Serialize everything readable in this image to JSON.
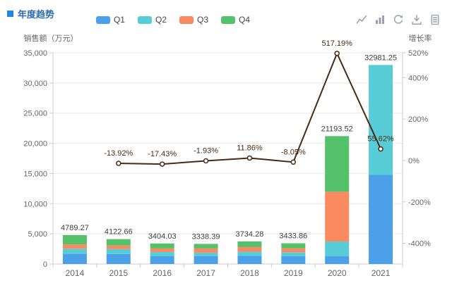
{
  "title": {
    "text": "年度趋势",
    "color": "#2b6cb5",
    "marker_color": "#1e88e5"
  },
  "legend": {
    "items": [
      {
        "label": "Q1",
        "color": "#4ba0e8"
      },
      {
        "label": "Q2",
        "color": "#58cdd8"
      },
      {
        "label": "Q3",
        "color": "#fb8a60"
      },
      {
        "label": "Q4",
        "color": "#55c16b"
      }
    ]
  },
  "toolbar": {
    "icons": [
      {
        "name": "line-chart-icon"
      },
      {
        "name": "bar-chart-icon"
      },
      {
        "name": "restore-icon"
      },
      {
        "name": "download-icon"
      },
      {
        "name": "data-view-icon"
      }
    ]
  },
  "chart_data": {
    "type": "bar",
    "subtype": "stacked-bar-with-line",
    "categories": [
      "2014",
      "2015",
      "2016",
      "2017",
      "2018",
      "2019",
      "2020",
      "2021"
    ],
    "series": [
      {
        "name": "Q1",
        "type": "bar",
        "stack": true,
        "color": "#4ba0e8",
        "values": [
          1676.25,
          1650.0,
          1290.0,
          1290.0,
          1350.0,
          1300.0,
          1280.0,
          14800.0
        ]
      },
      {
        "name": "Q2",
        "type": "bar",
        "stack": true,
        "color": "#58cdd8",
        "values": [
          862.07,
          820.0,
          700.0,
          590.0,
          700.0,
          640.0,
          2450.0,
          18181.25
        ]
      },
      {
        "name": "Q3",
        "type": "bar",
        "stack": true,
        "color": "#fb8a60",
        "values": [
          718.39,
          590.0,
          590.0,
          700.0,
          760.0,
          660.0,
          8250.0,
          0
        ]
      },
      {
        "name": "Q4",
        "type": "bar",
        "stack": true,
        "color": "#55c16b",
        "values": [
          1532.56,
          1062.66,
          824.03,
          758.39,
          924.28,
          833.86,
          9213.52,
          0
        ]
      }
    ],
    "totals": [
      4789.27,
      4122.66,
      3404.03,
      3338.39,
      3734.28,
      3433.86,
      21193.52,
      32981.25
    ],
    "growth_line": {
      "name": "增长率",
      "color": "#4a2a13",
      "values": [
        null,
        -13.92,
        -17.43,
        -1.93,
        11.86,
        -8.05,
        517.19,
        55.62
      ],
      "labels": [
        "",
        "-13.92%",
        "-17.43%",
        "-1.93%",
        "11.86%",
        "-8.05%",
        "517.19%",
        "55.62%"
      ]
    },
    "left_axis": {
      "name": "销售额（万元）",
      "min": 0,
      "max": 35000,
      "interval": 5000
    },
    "right_axis": {
      "name": "增长率",
      "min": -500,
      "max": 520,
      "ticks": [
        {
          "value": 520,
          "label": "520%"
        },
        {
          "value": 400,
          "label": "400%"
        },
        {
          "value": 200,
          "label": "200%"
        },
        {
          "value": 0,
          "label": "0%"
        },
        {
          "value": -200,
          "label": "-200%"
        },
        {
          "value": -400,
          "label": "-400%"
        }
      ]
    },
    "grid": true,
    "legend_position": "top",
    "colors": {
      "grid_line": "#e8e8e8",
      "axis_line": "#cccccc",
      "axis_text": "#666666",
      "total_label": "#3d3d3d"
    }
  }
}
